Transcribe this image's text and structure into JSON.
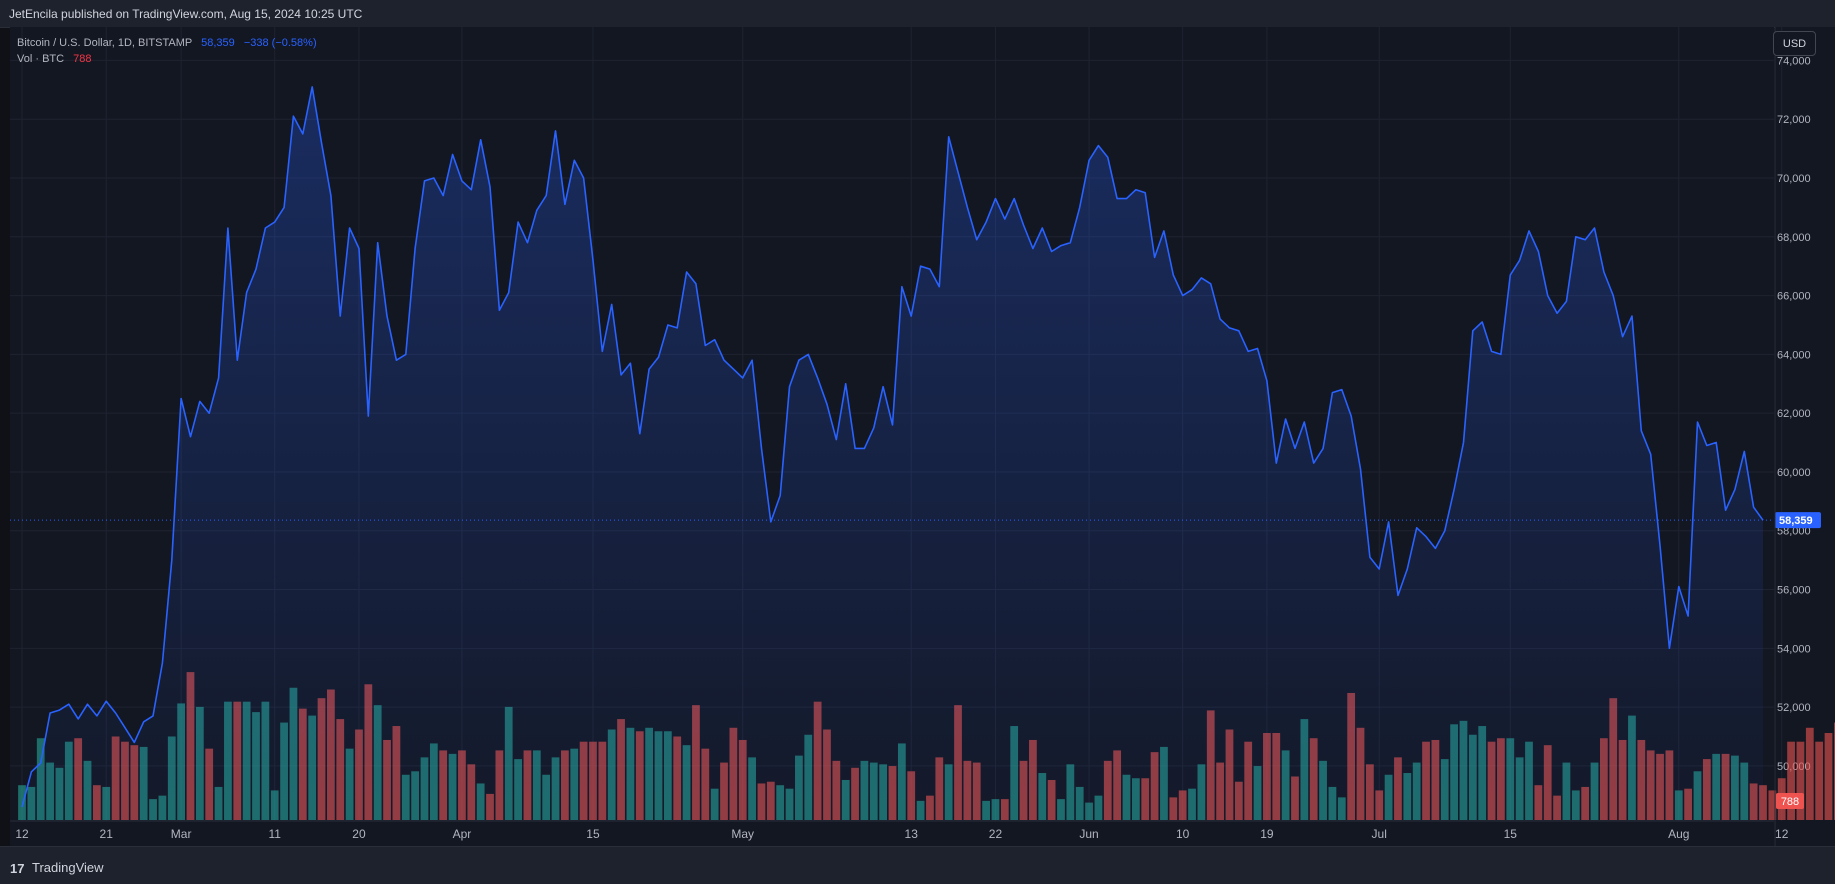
{
  "header": {
    "published_text": "JetEncila published on TradingView.com, Aug 15, 2024 10:25 UTC"
  },
  "legend": {
    "symbol": "Bitcoin / U.S. Dollar, 1D, BITSTAMP",
    "last": "58,359",
    "change": "−338 (−0.58%)",
    "vol_label": "Vol · BTC",
    "vol_value": "788"
  },
  "price_scale": {
    "currency_button": "USD",
    "ticks": [
      "74,000",
      "72,000",
      "70,000",
      "68,000",
      "66,000",
      "64,000",
      "62,000",
      "60,000",
      "58,000",
      "56,000",
      "54,000",
      "52,000",
      "50,000"
    ],
    "last_price_label": "58,359",
    "last_volume_label": "788"
  },
  "time_scale": {
    "labels": [
      "12",
      "21",
      "Mar",
      "11",
      "20",
      "Apr",
      "15",
      "May",
      "13",
      "22",
      "Jun",
      "10",
      "19",
      "Jul",
      "15",
      "Aug",
      "12"
    ]
  },
  "footer": {
    "brand": "TradingView",
    "brand_icon": "tradingview-logo-icon"
  },
  "colors": {
    "line": "#2962ff",
    "up_volume": "#26a69a",
    "down_volume": "#ef5350",
    "background": "#131722",
    "grid": "#1f2331"
  },
  "chart_data": {
    "type": "area",
    "title": "Bitcoin / U.S. Dollar, 1D, BITSTAMP",
    "xlabel": "",
    "ylabel": "",
    "ylim": [
      48500,
      75000
    ],
    "grid": true,
    "series": [
      {
        "name": "Bitcoin / U.S. Dollar",
        "values": [
          48600,
          49800,
          50100,
          51800,
          51900,
          52100,
          51600,
          52100,
          51700,
          52200,
          51800,
          51300,
          50800,
          51500,
          51700,
          53500,
          57000,
          62500,
          61200,
          62400,
          62000,
          63200,
          68300,
          63800,
          66100,
          66900,
          68300,
          68500,
          69000,
          72100,
          71500,
          73100,
          71200,
          69400,
          65300,
          68300,
          67600,
          61900,
          67800,
          65300,
          63800,
          64000,
          67600,
          69900,
          70000,
          69400,
          70800,
          69900,
          69600,
          71300,
          69700,
          65500,
          66100,
          68500,
          67800,
          68900,
          69400,
          71600,
          69100,
          70600,
          70000,
          67200,
          64100,
          65700,
          63300,
          63700,
          61300,
          63500,
          63900,
          65000,
          64900,
          66800,
          66400,
          64300,
          64500,
          63800,
          63500,
          63200,
          63800,
          60800,
          58300,
          59200,
          62900,
          63800,
          64000,
          63200,
          62300,
          61100,
          63000,
          60800,
          60800,
          61500,
          62900,
          61600,
          66300,
          65300,
          67000,
          66900,
          66300,
          71400,
          70200,
          69000,
          67900,
          68500,
          69300,
          68600,
          69300,
          68400,
          67600,
          68300,
          67500,
          67700,
          67800,
          69000,
          70600,
          71100,
          70700,
          69300,
          69300,
          69600,
          69500,
          67300,
          68200,
          66700,
          66000,
          66200,
          66600,
          66400,
          65200,
          64900,
          64800,
          64100,
          64200,
          63100,
          60300,
          61800,
          60800,
          61700,
          60300,
          60800,
          62700,
          62800,
          61900,
          60100,
          57100,
          56700,
          58300,
          55800,
          56700,
          58100,
          57800,
          57400,
          58000,
          59400,
          61000,
          64800,
          65100,
          64100,
          64000,
          66700,
          67200,
          68200,
          67500,
          66000,
          65400,
          65800,
          68000,
          67900,
          68300,
          66800,
          66000,
          64600,
          65300,
          61400,
          60600,
          57500,
          54000,
          56100,
          55100,
          61700,
          60900,
          61000,
          58700,
          59400,
          60700,
          58800,
          58359
        ]
      },
      {
        "name": "Vol · BTC",
        "values": [
          2000,
          1900,
          4700,
          3300,
          3000,
          4500,
          4700,
          3400,
          2000,
          1900,
          4800,
          4500,
          4300,
          4200,
          1200,
          1400,
          4800,
          6700,
          8500,
          6500,
          4100,
          1900,
          6800,
          6800,
          6800,
          6200,
          6800,
          1700,
          5600,
          7600,
          6400,
          6000,
          7000,
          7500,
          5800,
          4100,
          5200,
          7800,
          6600,
          4600,
          5400,
          2600,
          2800,
          3600,
          4400,
          4000,
          3800,
          4000,
          3200,
          2100,
          1500,
          4000,
          6500,
          3500,
          4000,
          4000,
          2600,
          3600,
          4000,
          4100,
          4500,
          4500,
          4500,
          5200,
          5800,
          5300,
          5100,
          5300,
          5100,
          5100,
          4800,
          4300,
          6600,
          4100,
          1800,
          3300,
          5300,
          4600,
          3600,
          2100,
          2200,
          2000,
          1800,
          3700,
          4900,
          6800,
          5200,
          3400,
          2300,
          3000,
          3400,
          3300,
          3200,
          3100,
          4400,
          2800,
          1100,
          1400,
          3600,
          3200,
          6600,
          3400,
          3300,
          1100,
          1200,
          1200,
          5400,
          3400,
          4600,
          2700,
          2300,
          1200,
          3200,
          1900,
          1000,
          1400,
          3400,
          4000,
          2600,
          2400,
          2400,
          3900,
          4200,
          1300,
          1700,
          1800,
          3200,
          6300,
          3300,
          5200,
          2200,
          4500,
          3100,
          5000,
          5000,
          4000,
          2500,
          5800,
          4700,
          3400,
          1900,
          1300,
          7300,
          5300,
          3200,
          1700,
          2600,
          3600,
          2700,
          3300,
          4500,
          4600,
          3500,
          5500,
          5700,
          4900,
          5400,
          4500,
          4700,
          4700,
          3600,
          4500,
          2000,
          4300,
          1400,
          3300,
          1700,
          1900,
          3300,
          4700,
          7000,
          4600,
          6000,
          4600,
          4000,
          3800,
          4000,
          1700,
          1800,
          2800,
          3500,
          3800,
          3800,
          3700,
          3300,
          2100,
          2000,
          1700,
          2400,
          4500,
          4500,
          5300,
          4500,
          5000,
          5600,
          2500,
          4700,
          6400,
          4600,
          3200,
          3900,
          3200,
          1800
        ]
      }
    ],
    "x_tick_labels": [
      "12",
      "21",
      "Mar",
      "11",
      "20",
      "Apr",
      "15",
      "May",
      "13",
      "22",
      "Jun",
      "10",
      "19",
      "Jul",
      "15",
      "Aug",
      "12"
    ],
    "y_tick_labels": [
      "74,000",
      "72,000",
      "70,000",
      "68,000",
      "66,000",
      "64,000",
      "62,000",
      "60,000",
      "58,000",
      "56,000",
      "54,000",
      "52,000",
      "50,000"
    ]
  }
}
